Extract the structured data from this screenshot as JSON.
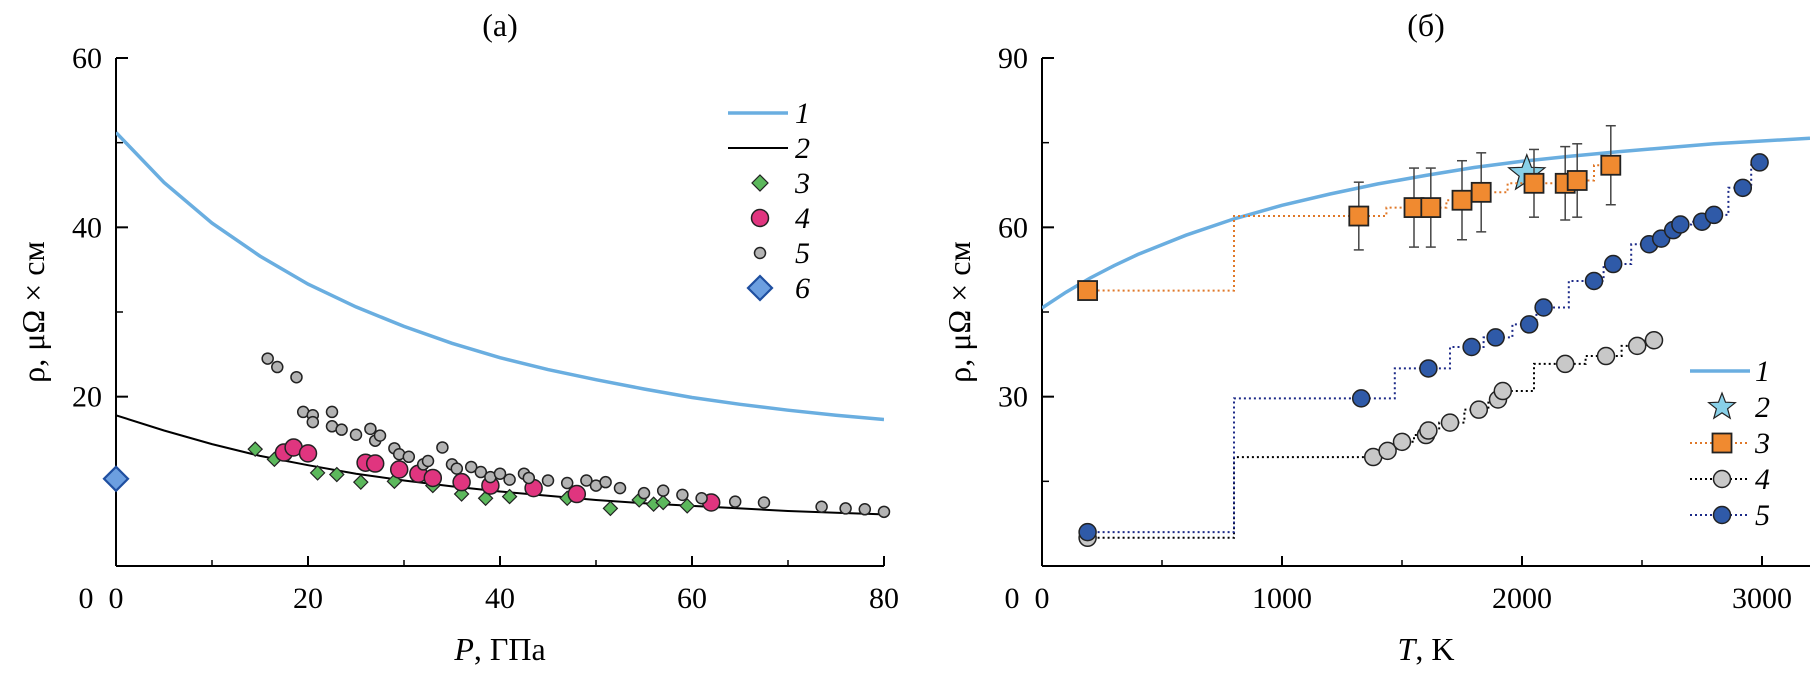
{
  "chart_data": [
    {
      "type": "scatter",
      "panel_label": "(а)",
      "xlabel_var": "P",
      "xlabel_unit": ", ГПа",
      "ylabel": "ρ, μΩ × см",
      "xlim": [
        0,
        80
      ],
      "ylim": [
        0,
        60
      ],
      "xticks": [
        0,
        20,
        40,
        60,
        80
      ],
      "yticks": [
        20,
        40,
        60
      ],
      "legend_position": "top-right",
      "series": [
        {
          "name": "1",
          "kind": "line",
          "color": "#6aaee0",
          "x": [
            0,
            5,
            10,
            15,
            20,
            25,
            30,
            35,
            40,
            45,
            50,
            55,
            60,
            65,
            70,
            75,
            80
          ],
          "y": [
            51.2,
            45.3,
            40.5,
            36.6,
            33.3,
            30.6,
            28.3,
            26.3,
            24.6,
            23.2,
            22.0,
            20.9,
            19.9,
            19.1,
            18.4,
            17.8,
            17.3
          ]
        },
        {
          "name": "2",
          "kind": "line",
          "color": "#000000",
          "x": [
            0,
            5,
            10,
            15,
            20,
            25,
            30,
            35,
            40,
            45,
            50,
            55,
            60,
            65,
            70,
            75,
            80
          ],
          "y": [
            17.8,
            16.0,
            14.4,
            13.0,
            11.9,
            10.9,
            10.1,
            9.4,
            8.8,
            8.3,
            7.8,
            7.4,
            7.1,
            6.8,
            6.5,
            6.3,
            6.1
          ]
        },
        {
          "name": "3",
          "kind": "diamond",
          "color": "#5cb85c",
          "size": 7,
          "x": [
            14.5,
            16.5,
            21,
            23,
            25.5,
            29,
            33,
            36,
            38.5,
            41,
            47,
            51.5,
            54.5,
            56,
            57,
            59.5
          ],
          "y": [
            13.8,
            12.6,
            11.0,
            10.8,
            9.9,
            10.0,
            9.5,
            8.5,
            8.0,
            8.2,
            8.0,
            6.8,
            7.8,
            7.3,
            7.5,
            7.1
          ]
        },
        {
          "name": "4",
          "kind": "circle",
          "color": "#e0357f",
          "size": 8.5,
          "x": [
            17.5,
            18.5,
            20,
            26,
            27,
            29.5,
            31.5,
            33,
            36,
            39,
            43.5,
            48,
            62
          ],
          "y": [
            13.4,
            14.0,
            13.3,
            12.2,
            12.1,
            11.4,
            10.9,
            10.4,
            9.9,
            9.5,
            9.2,
            8.5,
            7.5
          ]
        },
        {
          "name": "5",
          "kind": "circle",
          "color": "#b3b3b3",
          "size": 5.5,
          "x": [
            15.8,
            16.8,
            18.8,
            19.5,
            20.5,
            20.5,
            22.5,
            22.5,
            23.5,
            25,
            26.5,
            27,
            27.5,
            29,
            29.5,
            30.5,
            32,
            32.5,
            34,
            35,
            35.5,
            37,
            38,
            39,
            40,
            41,
            42.5,
            43,
            45,
            47,
            49,
            50,
            51,
            52.5,
            55,
            57,
            59,
            61,
            64.5,
            67.5,
            73.5,
            76,
            78,
            80
          ],
          "y": [
            24.5,
            23.5,
            22.3,
            18.2,
            17.8,
            17.0,
            18.2,
            16.5,
            16.1,
            15.5,
            16.2,
            14.8,
            15.4,
            13.9,
            13.2,
            12.9,
            12.0,
            12.4,
            14.0,
            12.0,
            11.5,
            11.7,
            11.1,
            10.5,
            10.9,
            10.2,
            10.9,
            10.4,
            10.1,
            9.8,
            10.1,
            9.5,
            9.9,
            9.2,
            8.6,
            8.9,
            8.4,
            8.0,
            7.6,
            7.5,
            7.0,
            6.8,
            6.7,
            6.4
          ]
        },
        {
          "name": "6",
          "kind": "diamond",
          "color": "#6c9fe0",
          "size": 12,
          "x": [
            0
          ],
          "y": [
            10.3
          ]
        }
      ]
    },
    {
      "type": "scatter",
      "panel_label": "(б)",
      "xlabel_var": "T",
      "xlabel_unit": ", K",
      "ylabel": "ρ, μΩ × см",
      "xlim": [
        0,
        3200
      ],
      "ylim": [
        0,
        90
      ],
      "xticks": [
        0,
        1000,
        2000,
        3000
      ],
      "yticks": [
        30,
        60,
        90
      ],
      "legend_position": "bottom-right",
      "series": [
        {
          "name": "1",
          "kind": "line",
          "color": "#6aaee0",
          "x": [
            0,
            100,
            200,
            300,
            400,
            600,
            800,
            1000,
            1200,
            1400,
            1600,
            1800,
            2000,
            2200,
            2400,
            2600,
            2800,
            3000,
            3200
          ],
          "y": [
            45.7,
            48.5,
            51.0,
            53.2,
            55.2,
            58.6,
            61.5,
            63.9,
            65.9,
            67.7,
            69.2,
            70.6,
            71.7,
            72.6,
            73.4,
            74.1,
            74.8,
            75.3,
            75.8
          ]
        },
        {
          "name": "2",
          "kind": "star",
          "color": "#88d0e8",
          "size": 19,
          "x": [
            2020
          ],
          "y": [
            69.5
          ]
        },
        {
          "name": "3",
          "kind": "square",
          "color": "#f08a30",
          "size": 9.5,
          "line_color": "#e07828",
          "x": [
            190,
            1320,
            1550,
            1620,
            1750,
            1830,
            2050,
            2180,
            2230,
            2370
          ],
          "y": [
            48.8,
            62.0,
            63.5,
            63.5,
            64.8,
            66.2,
            67.8,
            67.8,
            68.3,
            71.0
          ],
          "err": [
            0,
            6.0,
            7.0,
            7.0,
            7.0,
            7.0,
            6.0,
            6.5,
            6.5,
            7.0
          ]
        },
        {
          "name": "4",
          "kind": "circle",
          "color": "#c8c8c8",
          "size": 8.5,
          "line_color": "#000000",
          "x": [
            190,
            1380,
            1440,
            1500,
            1600,
            1610,
            1700,
            1820,
            1900,
            1920,
            2180,
            2350,
            2480,
            2550
          ],
          "y": [
            5.0,
            19.3,
            20.4,
            22.0,
            23.2,
            24.0,
            25.4,
            27.7,
            29.5,
            31.0,
            35.8,
            37.2,
            39.0,
            40.0
          ]
        },
        {
          "name": "5",
          "kind": "circle",
          "color": "#2f5aa8",
          "size": 8.5,
          "line_color": "#1c2a88",
          "x": [
            190,
            1330,
            1610,
            1790,
            1890,
            2030,
            2090,
            2300,
            2380,
            2530,
            2580,
            2630,
            2660,
            2750,
            2800,
            2920,
            2990
          ],
          "y": [
            6.0,
            29.7,
            35.0,
            38.8,
            40.5,
            42.8,
            45.8,
            50.5,
            53.5,
            57.0,
            58.0,
            59.5,
            60.5,
            61.0,
            62.2,
            67.0,
            71.5
          ]
        }
      ]
    }
  ]
}
